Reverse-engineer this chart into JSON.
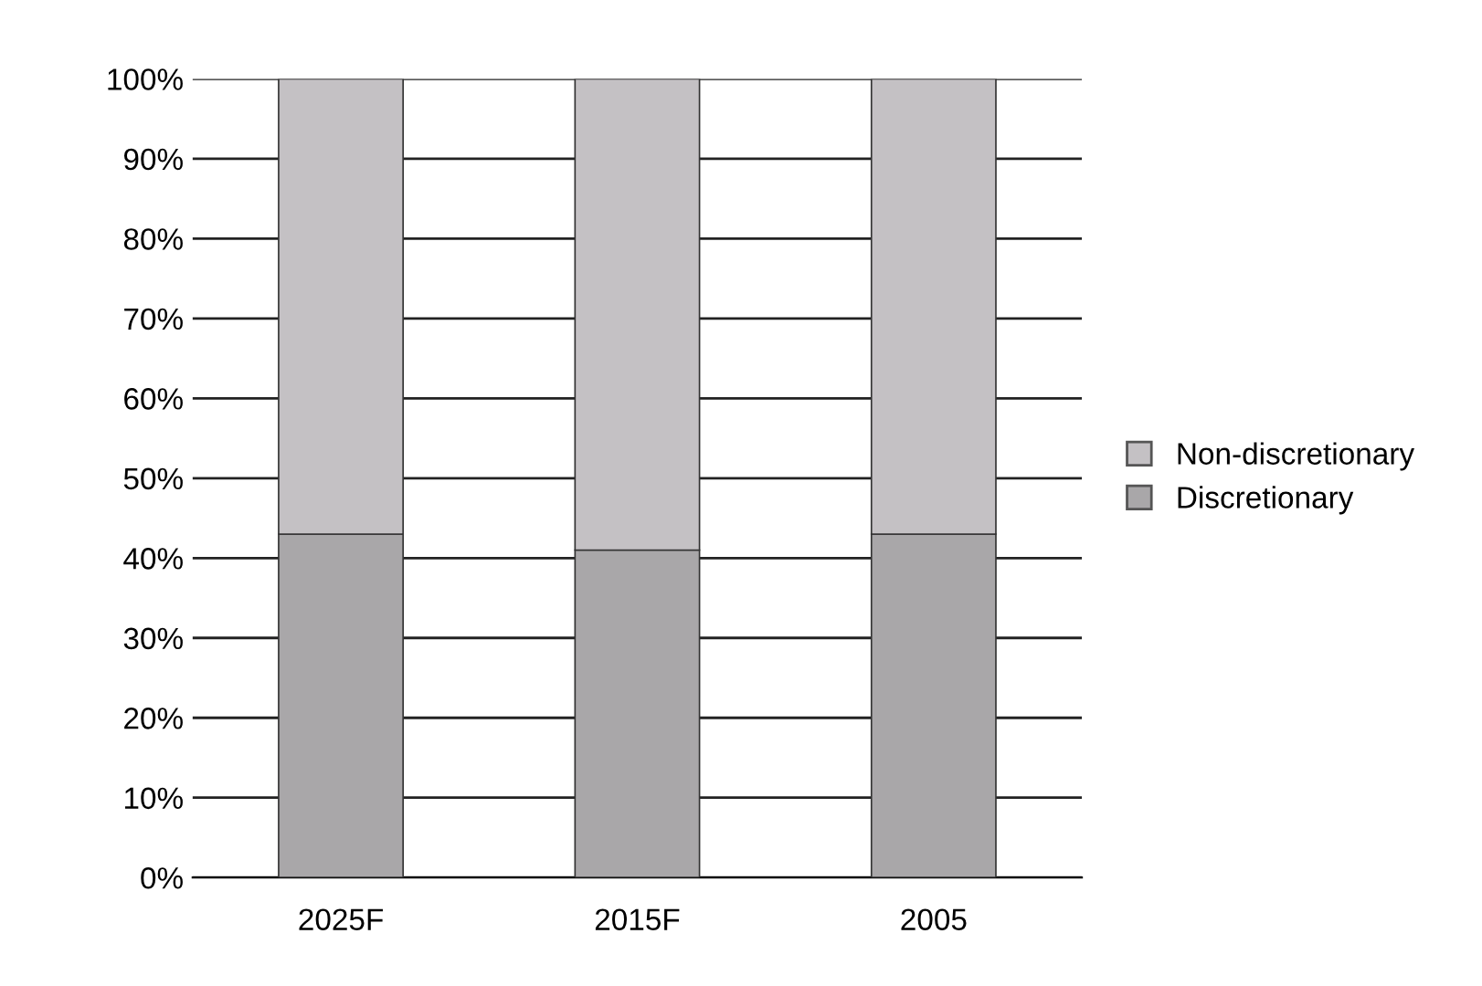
{
  "chart_data": {
    "type": "bar",
    "stacked": true,
    "categories": [
      "2025F",
      "2015F",
      "2005"
    ],
    "series": [
      {
        "name": "Discretionary",
        "color": "#a9a7a9",
        "values": [
          43,
          41,
          43
        ]
      },
      {
        "name": "Non-discretionary",
        "color": "#c4c1c4",
        "values": [
          57,
          59,
          57
        ]
      }
    ],
    "ylim": [
      0,
      100
    ],
    "yticks": [
      {
        "value": 0,
        "label": "0%"
      },
      {
        "value": 10,
        "label": "10%"
      },
      {
        "value": 20,
        "label": "20%"
      },
      {
        "value": 30,
        "label": "30%"
      },
      {
        "value": 40,
        "label": "40%"
      },
      {
        "value": 50,
        "label": "50%"
      },
      {
        "value": 60,
        "label": "60%"
      },
      {
        "value": 70,
        "label": "70%"
      },
      {
        "value": 80,
        "label": "80%"
      },
      {
        "value": 90,
        "label": "90%"
      },
      {
        "value": 100,
        "label": "100%"
      }
    ],
    "grid": "y",
    "legend": "right"
  }
}
